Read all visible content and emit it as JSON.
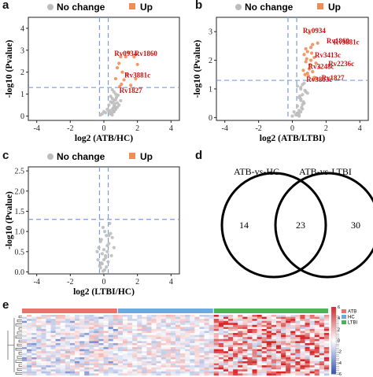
{
  "panels": {
    "a": "a",
    "b": "b",
    "c": "c",
    "d": "d",
    "e": "e"
  },
  "legend": {
    "nochange": "No change",
    "up": "Up"
  },
  "colors": {
    "up": "#f28c55",
    "nochange": "#bdbdbd",
    "label": "#cc1111",
    "threshold": "#7d9bd6",
    "atb": "#e8736c",
    "hc": "#6fa8dc",
    "ltbi": "#48b45a"
  },
  "chart_data": [
    {
      "id": "volcano-a",
      "type": "scatter",
      "xlabel": "log2 (ATB/HC)",
      "ylabel": "-log10 (Pvalue)",
      "xlim": [
        -4.5,
        4.5
      ],
      "ylim": [
        -0.2,
        4.5
      ],
      "xticks": [
        -4,
        -2,
        0,
        2,
        4
      ],
      "yticks": [
        0,
        1,
        2,
        3,
        4
      ],
      "thresholds": {
        "x": [
          -0.26,
          0.26
        ],
        "y": 1.3
      },
      "labels": [
        {
          "text": "Rv0934",
          "x": 1.3,
          "y": 2.75
        },
        {
          "text": "Rv1860",
          "x": 2.5,
          "y": 2.75
        },
        {
          "text": "Rv3881c",
          "x": 2.0,
          "y": 1.75
        },
        {
          "text": "Rv1827",
          "x": 1.6,
          "y": 1.05
        }
      ],
      "series": [
        {
          "group": "up",
          "x": [
            1.0,
            1.3,
            1.5,
            1.8,
            2.0,
            0.9,
            1.1,
            1.4,
            0.8,
            1.2,
            1.6,
            0.7,
            1.9,
            1.05,
            0.95
          ],
          "y": [
            2.7,
            2.7,
            2.9,
            2.7,
            2.35,
            2.4,
            2.0,
            1.9,
            2.2,
            1.65,
            1.4,
            1.7,
            1.7,
            1.45,
            1.35
          ]
        },
        {
          "group": "nochange",
          "x": [
            0.4,
            0.6,
            0.5,
            0.7,
            0.3,
            0.8,
            0.6,
            0.5,
            0.4,
            0.9,
            0.7,
            0.6,
            0.5,
            0.8,
            1.0,
            0.4,
            0.3,
            0.7,
            0.6,
            0.5,
            0.45,
            0.55,
            0.65,
            0.75,
            0.35,
            0.85,
            0.5,
            0.6,
            0.4,
            0.7,
            -0.1,
            0.0,
            -0.2,
            0.1,
            0.2
          ],
          "y": [
            0.1,
            0.2,
            0.3,
            0.4,
            0.5,
            0.6,
            0.7,
            0.8,
            0.9,
            0.5,
            0.3,
            0.2,
            0.6,
            0.4,
            0.7,
            0.1,
            0.2,
            1.0,
            1.1,
            1.2,
            0.15,
            0.35,
            0.55,
            0.85,
            0.25,
            0.95,
            0.05,
            0.45,
            0.65,
            0.75,
            0.1,
            0.2,
            0.05,
            0.15,
            0.3
          ]
        }
      ]
    },
    {
      "id": "volcano-b",
      "type": "scatter",
      "xlabel": "log2 (ATB/LTBI)",
      "ylabel": "-log10 (Pvalue)",
      "xlim": [
        -4.5,
        4.5
      ],
      "ylim": [
        -0.1,
        3.5
      ],
      "xticks": [
        -4,
        -2,
        0,
        2,
        4
      ],
      "yticks": [
        0,
        1,
        2,
        3
      ],
      "thresholds": {
        "x": [
          -0.26,
          0.26
        ],
        "y": 1.3
      },
      "labels": [
        {
          "text": "Rv0934",
          "x": 1.3,
          "y": 2.95
        },
        {
          "text": "Rv1860",
          "x": 2.7,
          "y": 2.6
        },
        {
          "text": "Rv3881c",
          "x": 3.2,
          "y": 2.55
        },
        {
          "text": "Rv3413c",
          "x": 2.1,
          "y": 2.1
        },
        {
          "text": "Rv2236c",
          "x": 2.9,
          "y": 1.8
        },
        {
          "text": "Rv3248c",
          "x": 1.7,
          "y": 1.7
        },
        {
          "text": "Rv3803c",
          "x": 1.6,
          "y": 1.25
        },
        {
          "text": "Rv1827",
          "x": 2.4,
          "y": 1.3
        }
      ],
      "series": [
        {
          "group": "up",
          "x": [
            1.0,
            1.2,
            1.5,
            0.9,
            1.1,
            1.3,
            0.8,
            1.4,
            0.7,
            1.0,
            1.6,
            0.9,
            1.2,
            0.8,
            1.3,
            0.75,
            1.05,
            0.95,
            1.15,
            0.85,
            1.25,
            0.65,
            1.45,
            1.1
          ],
          "y": [
            2.95,
            2.55,
            2.6,
            2.3,
            2.0,
            2.1,
            2.4,
            1.9,
            2.2,
            1.7,
            1.75,
            1.55,
            1.6,
            1.95,
            1.4,
            1.5,
            1.85,
            1.45,
            2.25,
            2.05,
            1.35,
            1.65,
            1.35,
            2.45
          ]
        },
        {
          "group": "nochange",
          "x": [
            0.4,
            0.5,
            0.6,
            0.3,
            0.7,
            0.5,
            0.4,
            0.6,
            0.8,
            0.5,
            0.3,
            0.7,
            0.4,
            0.6,
            0.5,
            0.9,
            0.35,
            0.55,
            0.65,
            0.45,
            0.75,
            0.5,
            0.6,
            0.4,
            0.2,
            0.1,
            0.0,
            0.3
          ],
          "y": [
            0.1,
            0.2,
            0.3,
            0.4,
            0.5,
            0.6,
            0.7,
            0.8,
            0.9,
            1.0,
            1.1,
            1.2,
            0.25,
            0.45,
            0.65,
            0.85,
            0.15,
            0.35,
            0.55,
            0.75,
            0.95,
            1.05,
            1.15,
            0.05,
            0.1,
            0.2,
            0.05,
            0.15
          ]
        }
      ]
    },
    {
      "id": "volcano-c",
      "type": "scatter",
      "xlabel": "log2 (LTBI/HC)",
      "ylabel": "-log10 (Pvalue)",
      "xlim": [
        -4.5,
        4.5
      ],
      "ylim": [
        -0.05,
        2.6
      ],
      "xticks": [
        -4,
        -2,
        0,
        2,
        4
      ],
      "yticks": [
        0.0,
        0.5,
        1.0,
        1.5,
        2.0,
        2.5
      ],
      "ytick_labels": [
        "0.0",
        "0.5",
        "1.0",
        "1.5",
        "2.0",
        "2.5"
      ],
      "thresholds": {
        "x": [
          -0.26,
          0.26
        ],
        "y": 1.3
      },
      "labels": [],
      "series": [
        {
          "group": "up",
          "x": [],
          "y": []
        },
        {
          "group": "nochange",
          "x": [
            -0.2,
            -0.1,
            0.0,
            0.1,
            0.2,
            -0.3,
            0.3,
            -0.15,
            0.15,
            0.05,
            -0.05,
            -0.25,
            0.25,
            0.1,
            -0.1,
            0.0,
            0.2,
            -0.2,
            0.4,
            0.5,
            0.6,
            -0.4,
            0.35,
            -0.35,
            0.05,
            -0.05,
            0.15,
            -0.15,
            0.45,
            0.3
          ],
          "y": [
            0.1,
            0.2,
            0.3,
            0.4,
            0.5,
            0.6,
            0.7,
            0.8,
            0.9,
            1.0,
            1.1,
            0.15,
            0.25,
            0.35,
            0.45,
            0.55,
            0.65,
            0.75,
            0.95,
            0.85,
            0.6,
            0.5,
            1.2,
            0.3,
            0.05,
            0.02,
            0.12,
            0.22,
            0.4,
            0.9
          ]
        }
      ]
    },
    {
      "id": "venn-d",
      "type": "venn",
      "sets": [
        "ATB-vs-HC",
        "ATB-vs-LTBI"
      ],
      "values": {
        "left_only": 14,
        "both": 23,
        "right_only": 30
      }
    },
    {
      "id": "heatmap-e",
      "type": "heatmap",
      "groups": [
        {
          "name": "ATB",
          "count": 20
        },
        {
          "name": "HC",
          "count": 20
        },
        {
          "name": "LTBI",
          "count": 24
        }
      ],
      "scale": {
        "ticks": [
          6,
          4,
          2,
          0,
          -2,
          -4,
          -6
        ],
        "max": 6,
        "min": -6
      },
      "rows": 30
    }
  ]
}
